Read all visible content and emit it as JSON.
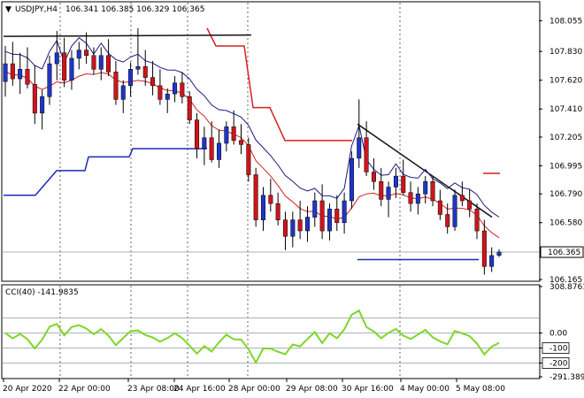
{
  "main_panel": {
    "symbol_label": "USDJPY,H4",
    "ohlc_label": "106.341 106.385 106.329 106.365",
    "price_axis_ticks": [
      "108.055",
      "107.830",
      "107.620",
      "107.410",
      "107.205",
      "106.995",
      "106.790",
      "106.580",
      "106.165"
    ],
    "current_price_tag": "106.365",
    "symbol_menu_icon": "triangle-down-icon"
  },
  "cci_panel": {
    "label": "CCI(40) -141.9835",
    "axis_ticks": [
      "308.8761",
      "0.00",
      "-100",
      "-200",
      "-291.3894"
    ]
  },
  "time_axis": {
    "labels": [
      "20 Apr 2020",
      "22 Apr 00:00",
      "23 Apr 08:00",
      "24 Apr 16:00",
      "28 Apr 00:00",
      "29 Apr 08:00",
      "30 Apr 16:00",
      "4 May 00:00",
      "5 May 08:00"
    ]
  },
  "colors": {
    "bull": "#1f35c8",
    "bear": "#d0141b",
    "red_line": "#d42020",
    "navy_line": "#1a1a80",
    "blue_line": "#1a2ab8",
    "cci_line": "#7fd629",
    "grid_gray": "#8a9aa8"
  },
  "chart_data": {
    "type": "candlestick",
    "symbol": "USDJPY",
    "timeframe": "H4",
    "ohlc_current": {
      "open": 106.341,
      "high": 106.385,
      "low": 106.329,
      "close": 106.365
    },
    "ylim": [
      106.165,
      108.18
    ],
    "candles": [
      [
        107.61,
        107.87,
        107.5,
        107.74
      ],
      [
        107.74,
        107.9,
        107.58,
        107.63
      ],
      [
        107.63,
        107.82,
        107.52,
        107.7
      ],
      [
        107.7,
        107.86,
        107.56,
        107.59
      ],
      [
        107.59,
        107.73,
        107.3,
        107.38
      ],
      [
        107.38,
        107.55,
        107.26,
        107.5
      ],
      [
        107.5,
        107.8,
        107.44,
        107.74
      ],
      [
        107.74,
        107.98,
        107.62,
        107.82
      ],
      [
        107.82,
        107.93,
        107.57,
        107.62
      ],
      [
        107.62,
        107.84,
        107.55,
        107.78
      ],
      [
        107.78,
        107.9,
        107.7,
        107.84
      ],
      [
        107.84,
        107.97,
        107.74,
        107.8
      ],
      [
        107.8,
        107.86,
        107.66,
        107.7
      ],
      [
        107.7,
        107.86,
        107.62,
        107.8
      ],
      [
        107.8,
        107.92,
        107.65,
        107.68
      ],
      [
        107.68,
        107.76,
        107.44,
        107.48
      ],
      [
        107.48,
        107.62,
        107.38,
        107.58
      ],
      [
        107.58,
        107.75,
        107.5,
        107.7
      ],
      [
        107.7,
        108.0,
        107.66,
        107.72
      ],
      [
        107.72,
        107.84,
        107.58,
        107.64
      ],
      [
        107.64,
        107.76,
        107.51,
        107.58
      ],
      [
        107.58,
        107.7,
        107.44,
        107.48
      ],
      [
        107.48,
        107.56,
        107.38,
        107.52
      ],
      [
        107.52,
        107.65,
        107.46,
        107.6
      ],
      [
        107.6,
        107.68,
        107.45,
        107.5
      ],
      [
        107.5,
        107.54,
        107.3,
        107.33
      ],
      [
        107.33,
        107.38,
        107.05,
        107.12
      ],
      [
        107.12,
        107.28,
        107.0,
        107.2
      ],
      [
        107.2,
        107.32,
        107.02,
        107.04
      ],
      [
        107.04,
        107.26,
        106.98,
        107.16
      ],
      [
        107.16,
        107.32,
        107.1,
        107.28
      ],
      [
        107.28,
        107.4,
        107.15,
        107.18
      ],
      [
        107.18,
        107.3,
        107.08,
        107.15
      ],
      [
        107.15,
        107.2,
        106.88,
        106.93
      ],
      [
        106.93,
        106.98,
        106.55,
        106.6
      ],
      [
        106.6,
        106.84,
        106.52,
        106.78
      ],
      [
        106.78,
        106.9,
        106.66,
        106.72
      ],
      [
        106.72,
        106.8,
        106.56,
        106.6
      ],
      [
        106.6,
        106.66,
        106.38,
        106.48
      ],
      [
        106.48,
        106.66,
        106.4,
        106.6
      ],
      [
        106.6,
        106.74,
        106.46,
        106.52
      ],
      [
        106.52,
        106.7,
        106.44,
        106.62
      ],
      [
        106.62,
        106.8,
        106.55,
        106.74
      ],
      [
        106.74,
        106.86,
        106.46,
        106.52
      ],
      [
        106.52,
        106.72,
        106.45,
        106.68
      ],
      [
        106.68,
        106.78,
        106.52,
        106.58
      ],
      [
        106.58,
        106.8,
        106.5,
        106.74
      ],
      [
        106.74,
        107.1,
        106.68,
        107.05
      ],
      [
        107.05,
        107.48,
        106.98,
        107.2
      ],
      [
        107.2,
        107.32,
        106.92,
        106.95
      ],
      [
        106.95,
        107.05,
        106.82,
        106.88
      ],
      [
        106.88,
        106.98,
        106.7,
        106.75
      ],
      [
        106.75,
        106.88,
        106.62,
        106.84
      ],
      [
        106.84,
        106.98,
        106.76,
        106.92
      ],
      [
        106.92,
        107.04,
        106.78,
        106.8
      ],
      [
        106.8,
        106.88,
        106.66,
        106.72
      ],
      [
        106.72,
        106.84,
        106.64,
        106.79
      ],
      [
        106.79,
        106.92,
        106.72,
        106.88
      ],
      [
        106.88,
        106.92,
        106.7,
        106.74
      ],
      [
        106.74,
        106.82,
        106.6,
        106.64
      ],
      [
        106.64,
        106.72,
        106.5,
        106.55
      ],
      [
        106.55,
        106.82,
        106.52,
        106.78
      ],
      [
        106.78,
        106.88,
        106.7,
        106.74
      ],
      [
        106.74,
        106.82,
        106.62,
        106.68
      ],
      [
        106.68,
        106.72,
        106.46,
        106.52
      ],
      [
        106.52,
        106.6,
        106.2,
        106.26
      ],
      [
        106.26,
        106.4,
        106.22,
        106.34
      ],
      [
        106.341,
        106.385,
        106.329,
        106.365
      ]
    ],
    "indicators": {
      "red_moving_average": "thin red line tracking the candles",
      "navy_moving_average": "thin navy line above the candles",
      "red_step_line": "stepped red line (high channel)",
      "blue_step_line": "stepped blue line (low channel)",
      "black_resistance": "horizontal black line in the upper left and descending black trendline from 30 Apr",
      "cci": {
        "name": "CCI(40)",
        "last": -141.9835,
        "levels": [
          100,
          0,
          -100,
          -200
        ],
        "ylim": [
          -291.3894,
          308.8761
        ]
      }
    }
  }
}
